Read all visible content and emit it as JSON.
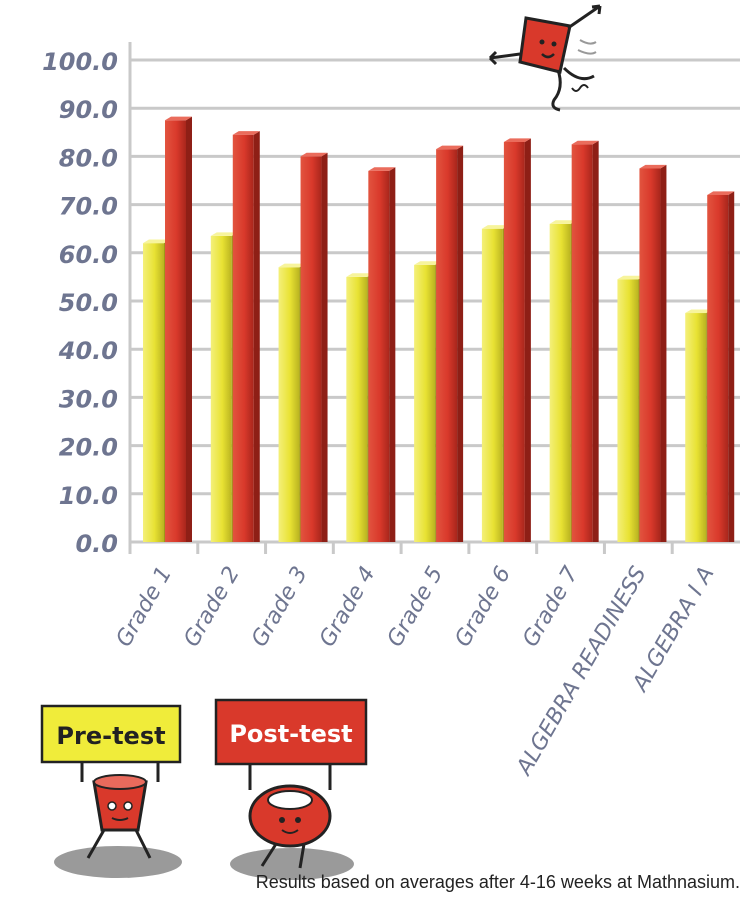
{
  "chart_data": {
    "type": "bar",
    "categories": [
      "Grade 1",
      "Grade 2",
      "Grade 3",
      "Grade 4",
      "Grade 5",
      "Grade 6",
      "Grade 7",
      "ALGEBRA READINESS",
      "ALGEBRA I A"
    ],
    "series": [
      {
        "name": "Pre-test",
        "color": "#e8e233",
        "values": [
          62,
          63.5,
          57,
          55,
          57.5,
          65,
          66,
          54.5,
          47.5
        ]
      },
      {
        "name": "Post-test",
        "color": "#d9392b",
        "values": [
          87.5,
          84.5,
          80,
          77,
          81.5,
          83,
          82.5,
          77.5,
          72
        ]
      }
    ],
    "ylim": [
      0,
      100
    ],
    "yticks": [
      "0.0",
      "10.0",
      "20.0",
      "30.0",
      "40.0",
      "50.0",
      "60.0",
      "70.0",
      "80.0",
      "90.0",
      "100.0"
    ],
    "grid": true,
    "legend_placement": "bottom-left"
  },
  "legend": {
    "pre_label": "Pre-test",
    "post_label": "Post-test"
  },
  "footnote": "Results based on averages after 4-16 weeks at Mathnasium.",
  "colors": {
    "axis_text": "#6e7590",
    "grid": "#c9c9c9",
    "pre": "#e8e233",
    "post": "#d9392b"
  },
  "icons": [
    "kite-mascot-icon",
    "pre-test-mascot-icon",
    "post-test-mascot-icon"
  ]
}
